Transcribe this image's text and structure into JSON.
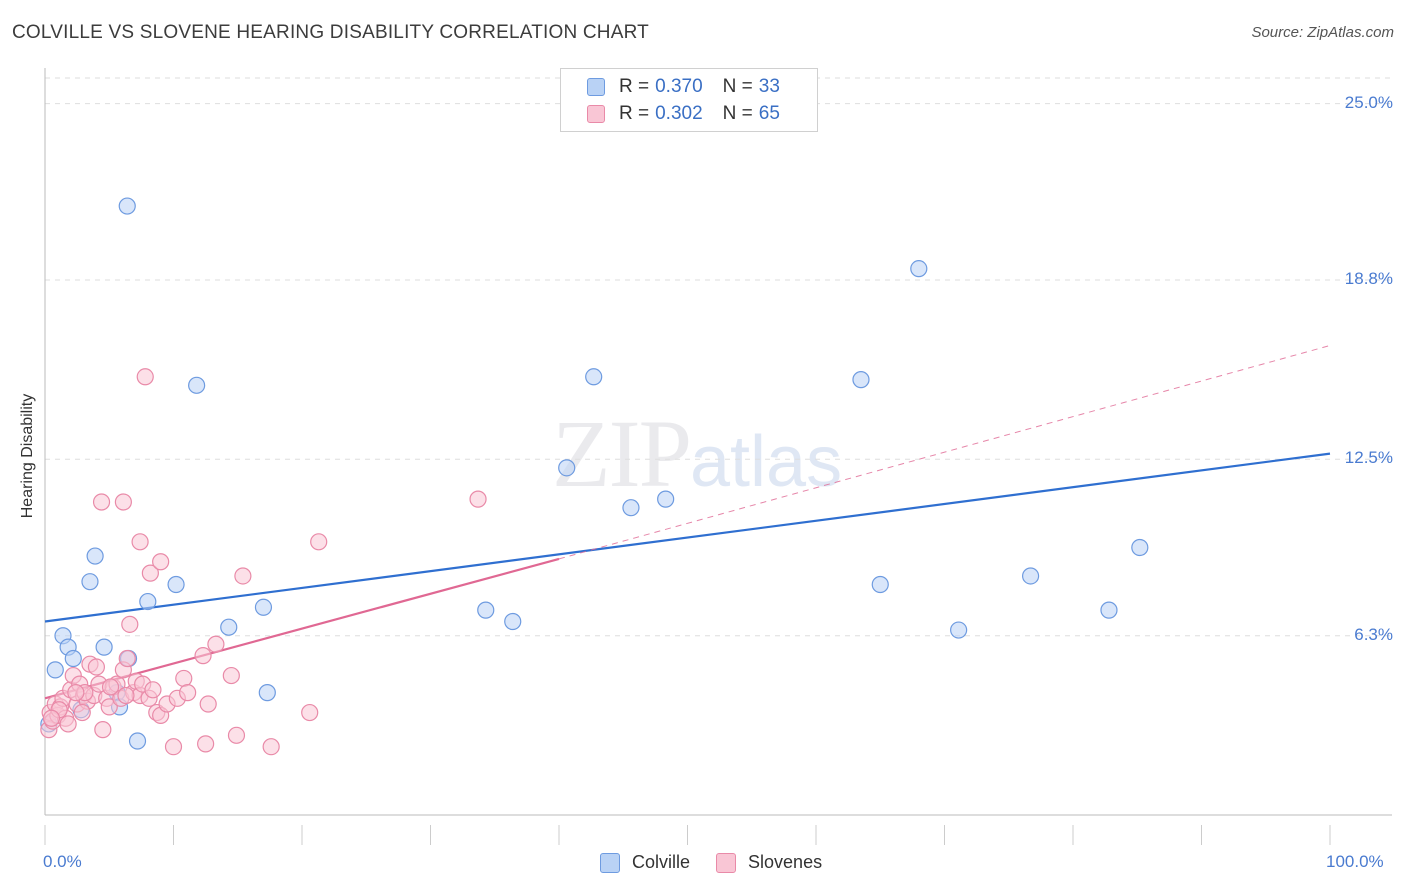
{
  "title": "COLVILLE VS SLOVENE HEARING DISABILITY CORRELATION CHART",
  "source": "Source: ZipAtlas.com",
  "watermark": {
    "part1": "ZIP",
    "part2": "atlas"
  },
  "legend": {
    "rows": [
      {
        "r_label": "R = ",
        "r_value": "0.370",
        "n_label": "N = ",
        "n_value": "33"
      },
      {
        "r_label": "R = ",
        "r_value": "0.302",
        "n_label": "N = ",
        "n_value": "65"
      }
    ]
  },
  "bottom_legend": [
    "Colville",
    "Slovenes"
  ],
  "colors": {
    "colville_fill": "#b9d2f5",
    "colville_stroke": "#6e9be0",
    "colville_line": "#2f6fd0",
    "slovenes_fill": "#f9c6d5",
    "slovenes_stroke": "#e98aa8",
    "slovenes_line": "#e06893",
    "grid": "#dedede",
    "tick_text": "#4a7bd0"
  },
  "chart_data": {
    "type": "scatter",
    "title": "COLVILLE VS SLOVENE HEARING DISABILITY CORRELATION CHART",
    "xlabel": "",
    "ylabel": "Hearing Disability",
    "xlim": [
      0,
      100
    ],
    "ylim": [
      0,
      25.9
    ],
    "x_tick_labels": [
      "0.0%",
      "100.0%"
    ],
    "y_ticks": [
      6.3,
      12.5,
      18.8,
      25.0
    ],
    "y_tick_labels": [
      "6.3%",
      "12.5%",
      "18.8%",
      "25.0%"
    ],
    "grid": true,
    "legend_position": "top-center",
    "series": [
      {
        "name": "Colville",
        "R": 0.37,
        "N": 33,
        "trend": {
          "x0": 0,
          "y0": 6.8,
          "x1": 100,
          "y1": 12.7,
          "style": "solid"
        },
        "points": [
          [
            0.3,
            3.2
          ],
          [
            0.8,
            5.1
          ],
          [
            1.4,
            6.3
          ],
          [
            1.8,
            5.9
          ],
          [
            2.2,
            5.5
          ],
          [
            2.8,
            3.7
          ],
          [
            3.5,
            8.2
          ],
          [
            3.9,
            9.1
          ],
          [
            4.6,
            5.9
          ],
          [
            5.6,
            4.3
          ],
          [
            5.8,
            3.8
          ],
          [
            6.5,
            5.5
          ],
          [
            7.2,
            2.6
          ],
          [
            8.0,
            7.5
          ],
          [
            10.2,
            8.1
          ],
          [
            6.4,
            21.4
          ],
          [
            11.8,
            15.1
          ],
          [
            14.3,
            6.6
          ],
          [
            17.0,
            7.3
          ],
          [
            17.3,
            4.3
          ],
          [
            34.3,
            7.2
          ],
          [
            36.4,
            6.8
          ],
          [
            40.6,
            12.2
          ],
          [
            42.7,
            15.4
          ],
          [
            45.6,
            10.8
          ],
          [
            48.3,
            11.1
          ],
          [
            63.5,
            15.3
          ],
          [
            65.0,
            8.1
          ],
          [
            68.0,
            19.2
          ],
          [
            71.1,
            6.5
          ],
          [
            76.7,
            8.4
          ],
          [
            82.8,
            7.2
          ],
          [
            85.2,
            9.4
          ]
        ]
      },
      {
        "name": "Slovenes",
        "R": 0.302,
        "N": 65,
        "trend": {
          "x0": 0,
          "y0": 4.1,
          "x1": 40,
          "y1": 9.0,
          "style": "solid",
          "dashed_extension": {
            "x0": 40,
            "y0": 9.0,
            "x1": 100,
            "y1": 16.5
          }
        },
        "points": [
          [
            0.3,
            3.0
          ],
          [
            0.4,
            3.6
          ],
          [
            0.6,
            3.3
          ],
          [
            0.8,
            3.9
          ],
          [
            1.0,
            3.5
          ],
          [
            1.2,
            3.8
          ],
          [
            1.4,
            4.1
          ],
          [
            1.6,
            3.4
          ],
          [
            1.8,
            3.2
          ],
          [
            2.0,
            4.4
          ],
          [
            2.2,
            4.9
          ],
          [
            2.5,
            3.9
          ],
          [
            2.7,
            4.6
          ],
          [
            3.0,
            4.2
          ],
          [
            3.3,
            4.0
          ],
          [
            3.5,
            5.3
          ],
          [
            3.8,
            4.2
          ],
          [
            4.0,
            5.2
          ],
          [
            4.2,
            4.6
          ],
          [
            4.5,
            3.0
          ],
          [
            4.8,
            4.1
          ],
          [
            5.0,
            3.8
          ],
          [
            5.3,
            4.5
          ],
          [
            5.6,
            4.6
          ],
          [
            5.9,
            4.1
          ],
          [
            6.1,
            5.1
          ],
          [
            6.4,
            5.5
          ],
          [
            6.6,
            6.7
          ],
          [
            6.9,
            4.3
          ],
          [
            7.1,
            4.7
          ],
          [
            7.4,
            4.2
          ],
          [
            7.6,
            4.6
          ],
          [
            8.1,
            4.1
          ],
          [
            8.4,
            4.4
          ],
          [
            8.7,
            3.6
          ],
          [
            9.0,
            3.5
          ],
          [
            9.5,
            3.9
          ],
          [
            10.0,
            2.4
          ],
          [
            10.3,
            4.1
          ],
          [
            10.8,
            4.8
          ],
          [
            11.1,
            4.3
          ],
          [
            12.3,
            5.6
          ],
          [
            12.7,
            3.9
          ],
          [
            13.3,
            6.0
          ],
          [
            14.5,
            4.9
          ],
          [
            14.9,
            2.8
          ],
          [
            15.4,
            8.4
          ],
          [
            12.5,
            2.5
          ],
          [
            17.6,
            2.4
          ],
          [
            20.6,
            3.6
          ],
          [
            21.3,
            9.6
          ],
          [
            6.1,
            11.0
          ],
          [
            4.4,
            11.0
          ],
          [
            7.4,
            9.6
          ],
          [
            8.2,
            8.5
          ],
          [
            9.0,
            8.9
          ],
          [
            7.8,
            15.4
          ],
          [
            33.7,
            11.1
          ],
          [
            2.9,
            3.6
          ],
          [
            1.1,
            3.7
          ],
          [
            0.5,
            3.4
          ],
          [
            3.1,
            4.3
          ],
          [
            5.1,
            4.5
          ],
          [
            6.3,
            4.2
          ],
          [
            2.4,
            4.3
          ]
        ]
      }
    ]
  }
}
